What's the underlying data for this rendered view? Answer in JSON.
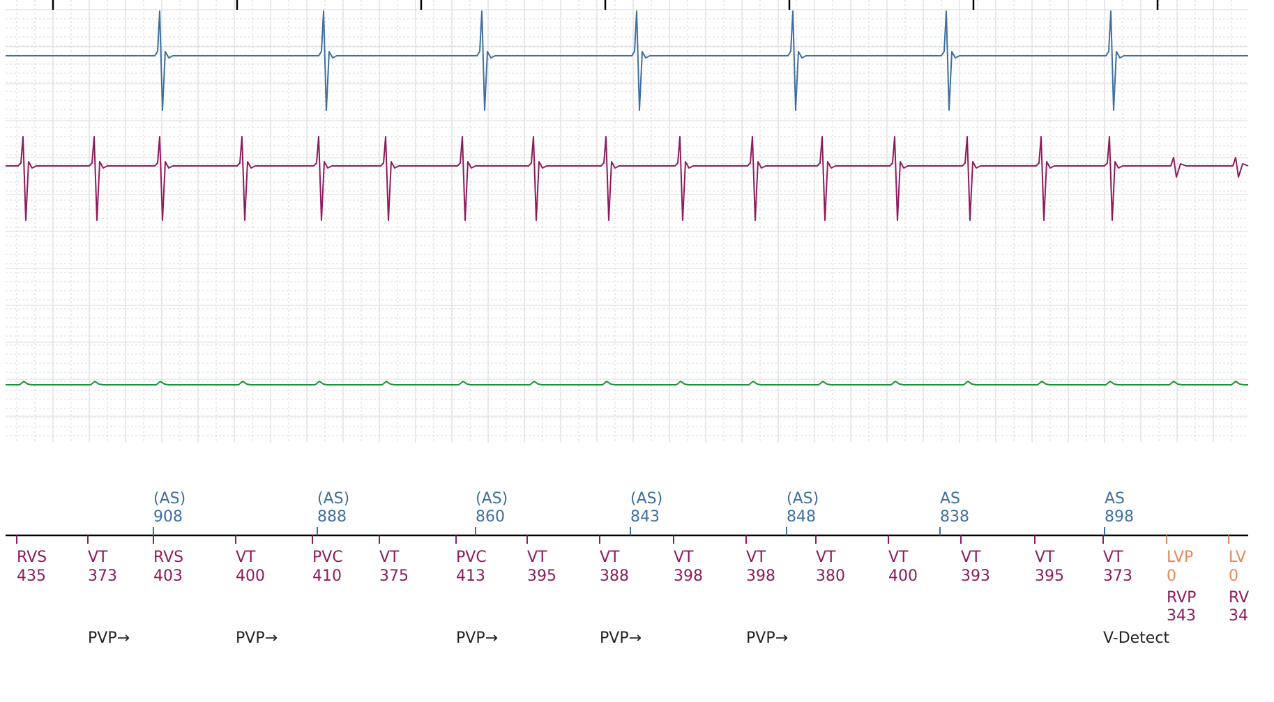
{
  "chart_data": {
    "type": "line",
    "title": "",
    "grid": true,
    "colors": {
      "atrial": "#3f6fa0",
      "ventricular": "#8e1b5c",
      "third_channel": "#1f8f3a",
      "lv_pacing": "#e8875a",
      "annotation": "#222222",
      "grid_major": "#e0e0e0",
      "grid_minor": "#cfcfcf"
    },
    "series": [
      {
        "name": "",
        "channel": "atrial",
        "color": "#3f6fa0"
      },
      {
        "name": "",
        "channel": "ventricular",
        "color": "#8e1b5c"
      },
      {
        "name": "",
        "channel": "third",
        "color": "#1f8f3a"
      }
    ],
    "atrial_markers": [
      {
        "label": "(AS)",
        "value": "908"
      },
      {
        "label": "(AS)",
        "value": "888"
      },
      {
        "label": "(AS)",
        "value": "860"
      },
      {
        "label": "(AS)",
        "value": "843"
      },
      {
        "label": "(AS)",
        "value": "848"
      },
      {
        "label": "AS",
        "value": "838"
      },
      {
        "label": "AS",
        "value": "898"
      }
    ],
    "ventricular_markers": [
      {
        "label": "RVS",
        "value": "435",
        "kind": "v"
      },
      {
        "label": "VT",
        "value": "373",
        "kind": "v"
      },
      {
        "label": "RVS",
        "value": "403",
        "kind": "v"
      },
      {
        "label": "VT",
        "value": "400",
        "kind": "v"
      },
      {
        "label": "PVC",
        "value": "410",
        "kind": "v"
      },
      {
        "label": "VT",
        "value": "375",
        "kind": "v"
      },
      {
        "label": "PVC",
        "value": "413",
        "kind": "v"
      },
      {
        "label": "VT",
        "value": "395",
        "kind": "v"
      },
      {
        "label": "VT",
        "value": "388",
        "kind": "v"
      },
      {
        "label": "VT",
        "value": "398",
        "kind": "v"
      },
      {
        "label": "VT",
        "value": "398",
        "kind": "v"
      },
      {
        "label": "VT",
        "value": "380",
        "kind": "v"
      },
      {
        "label": "VT",
        "value": "400",
        "kind": "v"
      },
      {
        "label": "VT",
        "value": "393",
        "kind": "v"
      },
      {
        "label": "VT",
        "value": "395",
        "kind": "v"
      },
      {
        "label": "VT",
        "value": "373",
        "kind": "v"
      },
      {
        "label": "LVP",
        "value": "0",
        "label2": "RVP",
        "value2": "343",
        "kind": "lv"
      },
      {
        "label": "LV",
        "value": "0",
        "label2": "RV",
        "value2": "34",
        "kind": "lv"
      }
    ],
    "annotations": [
      {
        "text": "PVP→",
        "at_marker": 1
      },
      {
        "text": "PVP→",
        "at_marker": 3
      },
      {
        "text": "PVP→",
        "at_marker": 6
      },
      {
        "text": "PVP→",
        "at_marker": 8
      },
      {
        "text": "PVP→",
        "at_marker": 10
      },
      {
        "text": "V-Detect",
        "at_marker": 15
      }
    ]
  }
}
